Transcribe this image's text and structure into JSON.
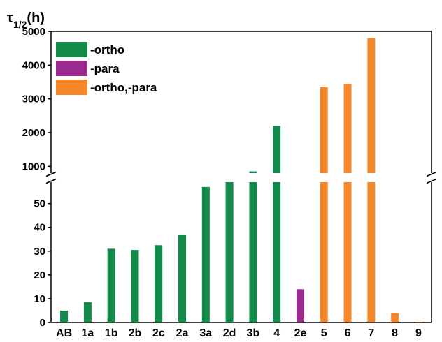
{
  "chart_data": {
    "type": "bar",
    "ylabel": {
      "main": "τ",
      "sub": "1/2",
      "unit": "(h)"
    },
    "categories": [
      "AB",
      "1a",
      "1b",
      "2b",
      "2c",
      "2a",
      "3a",
      "2d",
      "3b",
      "4",
      "2e",
      "5",
      "6",
      "7",
      "8",
      "9"
    ],
    "values": [
      5,
      8.5,
      31,
      30.5,
      32.5,
      37,
      57,
      60,
      850,
      2200,
      14,
      3350,
      3450,
      4800,
      4,
      0.3
    ],
    "groups": [
      "-ortho",
      "-ortho",
      "-ortho",
      "-ortho",
      "-ortho",
      "-ortho",
      "-ortho",
      "-ortho",
      "-ortho",
      "-ortho",
      "-para",
      "-ortho,-para",
      "-ortho,-para",
      "-ortho,-para",
      "-ortho,-para",
      "-ortho,-para"
    ],
    "legend": [
      {
        "label": "-ortho",
        "color": "#118a4a"
      },
      {
        "label": "-para",
        "color": "#9b2a8f"
      },
      {
        "label": "-ortho,-para",
        "color": "#f5872b"
      }
    ],
    "legend_position": "top-left",
    "axis_break": true,
    "lower_axis": {
      "ylim": [
        0,
        59
      ],
      "ticks": [
        0,
        10,
        20,
        30,
        40,
        50
      ]
    },
    "upper_axis": {
      "ylim": [
        800,
        5000
      ],
      "ticks": [
        1000,
        2000,
        3000,
        4000,
        5000
      ]
    },
    "grid": false
  }
}
